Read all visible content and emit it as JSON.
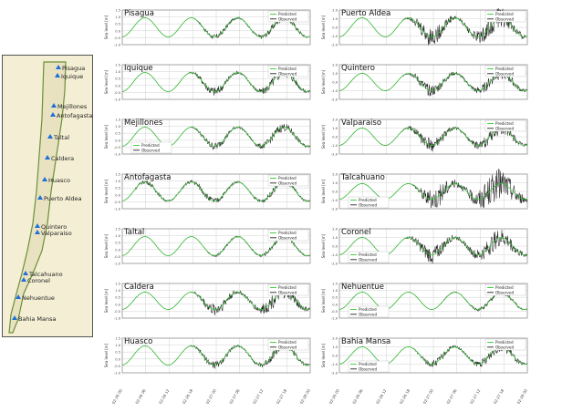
{
  "map": {
    "stations": [
      {
        "name": "Pisagua"
      },
      {
        "name": "Iquique"
      },
      {
        "name": "Mejillones"
      },
      {
        "name": "Antofagasta"
      },
      {
        "name": "Taltal"
      },
      {
        "name": "Caldera"
      },
      {
        "name": "Huasco"
      },
      {
        "name": "Puerto Aldea"
      },
      {
        "name": "Quintero"
      },
      {
        "name": "Valparaiso"
      },
      {
        "name": "Talcahuano"
      },
      {
        "name": "Coronel"
      },
      {
        "name": "Nehuentue"
      },
      {
        "name": "Bahia Mansa"
      }
    ]
  },
  "chart_data": {
    "type": "line",
    "ylabel": "Sea level [m]",
    "x_ticks": [
      "02-26 00",
      "02-26 06",
      "02-26 12",
      "02-26 18",
      "02-27 00",
      "02-27 06",
      "02-27 12",
      "02-27 18",
      "02-28 00"
    ],
    "legend": {
      "predicted": "Predicted",
      "observed": "Observed"
    },
    "colors": {
      "predicted": "#33cc33",
      "observed": "#222222",
      "grid": "#d0d0d0",
      "axes": "#888888"
    },
    "grid": true,
    "panels": [
      {
        "title": "Pisagua",
        "amp": 0.55,
        "noise": 0.2,
        "onset": 0.36,
        "yticks": [
          "1.5",
          "1.0",
          "0.5",
          "0.0",
          "-0.5",
          "-1.0"
        ],
        "legend_pos": "top-right"
      },
      {
        "title": "Iquique",
        "amp": 0.55,
        "noise": 0.3,
        "onset": 0.32,
        "yticks": [
          "1.5",
          "1.0",
          "0.5",
          "0.0",
          "-0.5",
          "-1.0"
        ],
        "legend_pos": "top-right"
      },
      {
        "title": "Mejillones",
        "amp": 0.55,
        "noise": 0.25,
        "onset": 0.34,
        "yticks": [
          "1.5",
          "1.0",
          "0.5",
          "0.0",
          "-0.5",
          "-1.0"
        ],
        "legend_pos": "bottom-left"
      },
      {
        "title": "Antofagasta",
        "amp": 0.55,
        "noise": 0.18,
        "onset": 0.02,
        "yticks": [
          "1.5",
          "1.0",
          "0.5",
          "0.0",
          "-0.5",
          "-1.0"
        ],
        "legend_pos": "top-right"
      },
      {
        "title": "Taltal",
        "amp": 0.55,
        "noise": 0.15,
        "onset": 0.42,
        "yticks": [
          "1.5",
          "1.0",
          "0.5",
          "0.0",
          "-0.5",
          "-1.0"
        ],
        "legend_pos": "top-right"
      },
      {
        "title": "Caldera",
        "amp": 0.5,
        "noise": 0.45,
        "onset": 0.35,
        "yticks": [
          "1.5",
          "1.0",
          "0.5",
          "0.0",
          "-0.5",
          "-1.0"
        ],
        "legend_pos": "top-right"
      },
      {
        "title": "Huasco",
        "amp": 0.55,
        "noise": 0.25,
        "onset": 0.33,
        "yticks": [
          "1.5",
          "1.0",
          "0.5",
          "0.0",
          "-0.5",
          "-1.0"
        ],
        "legend_pos": "top-right"
      },
      {
        "title": "Puerto Aldea",
        "amp": 0.55,
        "noise": 0.6,
        "onset": 0.32,
        "yticks": [
          "2.0",
          "1.0",
          "0.0",
          "-1.0",
          "-2.0"
        ],
        "legend_pos": "top-right"
      },
      {
        "title": "Quintero",
        "amp": 0.5,
        "noise": 0.35,
        "onset": 0.3,
        "yticks": [
          "2.0",
          "1.0",
          "0.0",
          "-1.0",
          "-2.0"
        ],
        "legend_pos": "top-right"
      },
      {
        "title": "Valparaiso",
        "amp": 0.5,
        "noise": 0.4,
        "onset": 0.3,
        "yticks": [
          "2.0",
          "1.0",
          "0.0",
          "-1.0",
          "-2.0"
        ],
        "legend_pos": "top-right"
      },
      {
        "title": "Talcahuano",
        "amp": 0.45,
        "noise": 0.9,
        "onset": 0.38,
        "yticks": [
          "2.0",
          "1.0",
          "0.0",
          "-1.0",
          "-2.0"
        ],
        "legend_pos": "bottom-left"
      },
      {
        "title": "Coronel",
        "amp": 0.5,
        "noise": 0.55,
        "onset": 0.33,
        "yticks": [
          "2.0",
          "1.0",
          "0.0",
          "-1.0",
          "-2.0"
        ],
        "legend_pos": "bottom-left"
      },
      {
        "title": "Nehuentue",
        "amp": 0.5,
        "noise": 0.15,
        "onset": 0.5,
        "yticks": [
          "1.5",
          "1.0",
          "0.5",
          "0.0",
          "-0.5",
          "-1.0"
        ],
        "legend_pos": "top-right-and-bottom-left"
      },
      {
        "title": "Bahia Mansa",
        "amp": 0.5,
        "noise": 0.3,
        "onset": 0.38,
        "yticks": [
          "2.0",
          "1.0",
          "0.0",
          "-1.0",
          "-2.0"
        ],
        "legend_pos": "top-right-and-bottom-left"
      }
    ]
  }
}
